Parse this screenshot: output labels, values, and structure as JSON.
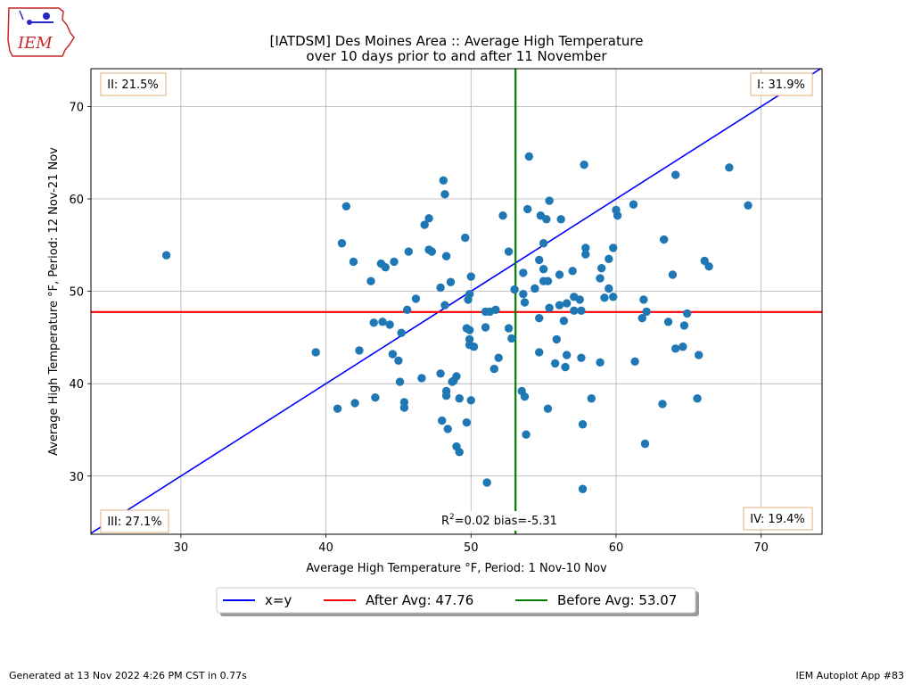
{
  "logo": {
    "text": "IEM"
  },
  "footer": {
    "left": "Generated at 13 Nov 2022 4:26 PM CST in 0.77s",
    "right": "IEM Autoplot App #83"
  },
  "colors": {
    "x_eq_y": "#0000ff",
    "after": "#ff0000",
    "before": "#008000",
    "points": "#1f77b4"
  },
  "chart_data": {
    "type": "scatter",
    "title": "[IATDSM] Des Moines Area :: Average High Temperature",
    "subtitle": "over 10 days prior to and after 11 November",
    "xlabel": "Average High Temperature °F, Period: 1 Nov-10 Nov",
    "ylabel": "Average High Temperature °F, Period: 12 Nov-21 Nov",
    "xlim": [
      23.8,
      74.2
    ],
    "ylim": [
      23.7,
      74.1
    ],
    "xticks": [
      30,
      40,
      50,
      60,
      70
    ],
    "yticks": [
      30,
      40,
      50,
      60,
      70
    ],
    "grid": true,
    "quadrants": {
      "I": "I: 31.9%",
      "II": "II: 21.5%",
      "III": "III: 27.1%",
      "IV": "IV: 19.4%"
    },
    "stats_r2": "2",
    "stats_text": "=0.02 bias=-5.31",
    "stats_prefix": "R",
    "after_avg": 47.76,
    "before_avg": 53.07,
    "legend": {
      "placement": "bottom-center",
      "x_eq_y": "x=y",
      "after": "After Avg: 47.76",
      "before": "Before Avg: 53.07"
    },
    "points": [
      [
        29.0,
        53.9
      ],
      [
        39.3,
        43.4
      ],
      [
        40.8,
        37.3
      ],
      [
        41.1,
        55.2
      ],
      [
        41.4,
        59.2
      ],
      [
        41.9,
        53.2
      ],
      [
        42.0,
        37.9
      ],
      [
        42.3,
        43.6
      ],
      [
        43.1,
        51.1
      ],
      [
        43.3,
        46.6
      ],
      [
        43.4,
        38.5
      ],
      [
        43.8,
        53.0
      ],
      [
        43.9,
        46.7
      ],
      [
        44.1,
        52.6
      ],
      [
        44.4,
        46.4
      ],
      [
        44.6,
        43.2
      ],
      [
        44.7,
        53.2
      ],
      [
        45.0,
        42.5
      ],
      [
        45.1,
        40.2
      ],
      [
        45.2,
        45.5
      ],
      [
        45.4,
        37.4
      ],
      [
        45.4,
        38.0
      ],
      [
        45.6,
        48.0
      ],
      [
        45.7,
        54.3
      ],
      [
        46.2,
        49.2
      ],
      [
        46.6,
        40.6
      ],
      [
        46.8,
        57.2
      ],
      [
        47.1,
        57.9
      ],
      [
        47.1,
        54.5
      ],
      [
        47.3,
        54.3
      ],
      [
        47.9,
        41.1
      ],
      [
        47.9,
        50.4
      ],
      [
        48.0,
        36.0
      ],
      [
        48.1,
        62.0
      ],
      [
        48.2,
        60.5
      ],
      [
        48.2,
        48.5
      ],
      [
        48.3,
        53.8
      ],
      [
        48.3,
        39.2
      ],
      [
        48.3,
        38.7
      ],
      [
        48.4,
        35.1
      ],
      [
        48.6,
        51.0
      ],
      [
        48.7,
        40.2
      ],
      [
        48.8,
        40.3
      ],
      [
        49.0,
        33.2
      ],
      [
        49.0,
        40.8
      ],
      [
        49.2,
        32.6
      ],
      [
        49.2,
        38.4
      ],
      [
        49.6,
        55.8
      ],
      [
        49.7,
        46.0
      ],
      [
        49.7,
        35.8
      ],
      [
        49.8,
        49.1
      ],
      [
        49.9,
        49.7
      ],
      [
        49.9,
        44.8
      ],
      [
        49.9,
        44.2
      ],
      [
        49.9,
        45.8
      ],
      [
        50.0,
        51.6
      ],
      [
        50.0,
        38.2
      ],
      [
        50.2,
        44.0
      ],
      [
        51.0,
        46.1
      ],
      [
        51.0,
        47.8
      ],
      [
        51.1,
        29.3
      ],
      [
        51.3,
        47.8
      ],
      [
        51.6,
        41.6
      ],
      [
        51.7,
        48.0
      ],
      [
        51.9,
        42.8
      ],
      [
        52.2,
        58.2
      ],
      [
        52.6,
        54.3
      ],
      [
        52.6,
        46.0
      ],
      [
        52.8,
        44.9
      ],
      [
        53.0,
        50.2
      ],
      [
        53.5,
        39.2
      ],
      [
        53.6,
        52.0
      ],
      [
        53.6,
        49.7
      ],
      [
        53.7,
        48.8
      ],
      [
        53.7,
        38.6
      ],
      [
        53.8,
        34.5
      ],
      [
        53.9,
        58.9
      ],
      [
        54.0,
        64.6
      ],
      [
        54.4,
        50.3
      ],
      [
        54.7,
        53.4
      ],
      [
        54.7,
        47.1
      ],
      [
        54.7,
        43.4
      ],
      [
        54.8,
        58.2
      ],
      [
        55.0,
        55.2
      ],
      [
        55.0,
        52.4
      ],
      [
        55.0,
        51.1
      ],
      [
        55.2,
        57.8
      ],
      [
        55.3,
        51.1
      ],
      [
        55.3,
        37.3
      ],
      [
        55.4,
        59.8
      ],
      [
        55.4,
        48.2
      ],
      [
        55.8,
        42.2
      ],
      [
        55.9,
        44.8
      ],
      [
        56.1,
        51.8
      ],
      [
        56.1,
        48.5
      ],
      [
        56.2,
        57.8
      ],
      [
        56.4,
        46.8
      ],
      [
        56.5,
        41.8
      ],
      [
        56.6,
        48.7
      ],
      [
        56.6,
        43.1
      ],
      [
        57.0,
        52.2
      ],
      [
        57.1,
        49.4
      ],
      [
        57.1,
        47.9
      ],
      [
        57.5,
        49.1
      ],
      [
        57.6,
        47.9
      ],
      [
        57.6,
        42.8
      ],
      [
        57.7,
        35.6
      ],
      [
        57.7,
        28.6
      ],
      [
        57.8,
        63.7
      ],
      [
        57.9,
        54.7
      ],
      [
        57.9,
        54.0
      ],
      [
        58.3,
        38.4
      ],
      [
        58.9,
        51.4
      ],
      [
        58.9,
        42.3
      ],
      [
        59.0,
        52.5
      ],
      [
        59.2,
        49.3
      ],
      [
        59.5,
        53.5
      ],
      [
        59.5,
        50.3
      ],
      [
        59.8,
        49.4
      ],
      [
        59.8,
        54.7
      ],
      [
        60.0,
        58.8
      ],
      [
        60.1,
        58.2
      ],
      [
        61.2,
        59.4
      ],
      [
        61.3,
        42.4
      ],
      [
        61.8,
        47.1
      ],
      [
        61.9,
        49.1
      ],
      [
        62.0,
        33.5
      ],
      [
        62.1,
        47.8
      ],
      [
        63.2,
        37.8
      ],
      [
        63.3,
        55.6
      ],
      [
        63.6,
        46.7
      ],
      [
        63.9,
        51.8
      ],
      [
        64.1,
        62.6
      ],
      [
        64.1,
        43.8
      ],
      [
        64.6,
        44.0
      ],
      [
        64.7,
        46.3
      ],
      [
        64.9,
        47.6
      ],
      [
        65.6,
        38.4
      ],
      [
        65.7,
        43.1
      ],
      [
        66.1,
        53.3
      ],
      [
        66.4,
        52.7
      ],
      [
        67.8,
        63.4
      ],
      [
        69.1,
        59.3
      ]
    ]
  }
}
